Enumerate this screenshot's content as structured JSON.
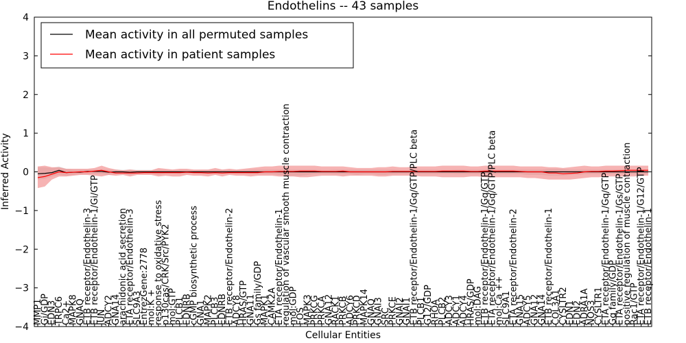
{
  "chart_data": {
    "type": "line",
    "title": "Endothelins -- 43 samples",
    "xlabel": "Cellular Entities",
    "ylabel": "Inferred Activity",
    "ylim": [
      -4,
      4
    ],
    "yticks": [
      "−4",
      "−3",
      "−2",
      "−1",
      "0",
      "1",
      "2",
      "3",
      "4"
    ],
    "grid": false,
    "legend_position": "top-left",
    "categories": [
      "MMP1",
      "Gi/GDP",
      "EDN3",
      "TRPC6",
      "Ca2+",
      "MAPK8",
      "GNAQ",
      "ETB receptor/Endothelin-3",
      "ETB receptor/Endothelin-1/Gi/GTP",
      "JUN",
      "ADCY2",
      "GNA14",
      "arachidonic acid secretion",
      "ETA receptor/Endothelin-3",
      "SLC9A3",
      "EntrezGene:2778",
      "mol:K +",
      "response to oxidative stress",
      "p130cas/CRK/Src/PYK2",
      "mol:GTP",
      "PLCB1",
      "EDNRB",
      "cGMP biosynthetic process",
      "GNA1",
      "MAPK2",
      "PLCB3",
      "EDNRB",
      "ETB receptor/Endothelin-2",
      "ADCY8",
      "HRAS/GTP",
      "GNA11",
      "Gs family/GDP",
      "MAPK1",
      "CAMK2A",
      "ETA receptor/Endothelin-1",
      "regulation of vascular smooth muscle contraction",
      "mol:GDP",
      "FOS",
      "MAPK3",
      "PRKCG",
      "PRKCA",
      "GNA12",
      "RACK1",
      "PRKCB",
      "ADCY6",
      "PRKCD",
      "MAPK14",
      "GNAQ",
      "GNAI3",
      "SRC",
      "PRKCE",
      "GNAI2",
      "GNAI1",
      "ETB receptor/Endothelin-1/Gq/GTP/PLC beta",
      "PLCB1",
      "G12/GDP",
      "RHOA",
      "PLCB2",
      "ADCY3",
      "ADCY1",
      "ADCY4",
      "HRAS/GDP",
      "mol:DAG",
      "ETB receptor/Endothelin-1/Gq/GTP",
      "ETA receptor/Endothelin-1/Gq/GTP/PLC beta",
      "mol:Ca ++",
      "SLC9A1",
      "ETA receptor/Endothelin-2",
      "GNA15",
      "ADCY5",
      "GNA12",
      "GNA14",
      "ETB receptor/Endothelin-1",
      "COL3A1",
      "CYSLTR2",
      "EDN1",
      "EDN2",
      "ADRA1A",
      "NOS3",
      "CYSLTR1",
      "ETA receptor/Endothelin-1/Gq/GTP",
      "Gq family/GDP",
      "ETA receptor/Endothelin-1/Gs/GTP",
      "positive regulation of muscle contraction",
      "Rac1/GTP",
      "ETA receptor/Endothelin-1/G12/GTP",
      "ETB receptor/Endothelin-1"
    ],
    "series": [
      {
        "name": "Mean activity in all permuted samples",
        "color": "#000000",
        "band_color": "#d9d9d9",
        "values": [
          -0.05,
          -0.04,
          -0.02,
          0.04,
          -0.02,
          -0.01,
          -0.01,
          0.01,
          0.01,
          0.01,
          -0.01,
          0.0,
          0.0,
          -0.01,
          0.0,
          0.0,
          0.0,
          0.0,
          0.0,
          0.0,
          0.0,
          0.0,
          0.0,
          0.0,
          0.0,
          0.0,
          0.0,
          0.0,
          0.0,
          0.0,
          0.0,
          0.0,
          0.0,
          0.0,
          0.0,
          0.0,
          0.0,
          0.0,
          0.0,
          0.0,
          0.0,
          0.0,
          0.0,
          0.0,
          0.0,
          0.0,
          0.0,
          0.0,
          0.0,
          0.0,
          0.0,
          0.0,
          0.0,
          0.0,
          0.0,
          0.0,
          0.0,
          0.0,
          0.0,
          0.0,
          0.0,
          0.0,
          0.0,
          0.0,
          0.0,
          0.0,
          0.0,
          0.0,
          0.0,
          0.0,
          0.0,
          0.0,
          0.0,
          0.0,
          0.0,
          0.0,
          0.0,
          0.0,
          0.0,
          0.0,
          0.0,
          0.0,
          0.0,
          0.0,
          0.0,
          0.0,
          0.0
        ],
        "lower": [
          -0.2,
          -0.18,
          -0.12,
          -0.08,
          -0.1,
          -0.08,
          -0.06,
          -0.06,
          -0.06,
          -0.06,
          -0.08,
          -0.06,
          -0.05,
          -0.08,
          -0.05,
          -0.05,
          -0.05,
          -0.08,
          -0.05,
          -0.05,
          -0.06,
          -0.05,
          -0.04,
          -0.05,
          -0.05,
          -0.05,
          -0.05,
          -0.05,
          -0.05,
          -0.05,
          -0.06,
          -0.06,
          -0.06,
          -0.06,
          -0.08,
          -0.1,
          -0.1,
          -0.1,
          -0.08,
          -0.06,
          -0.05,
          -0.05,
          -0.06,
          -0.06,
          -0.06,
          -0.08,
          -0.06,
          -0.06,
          -0.08,
          -0.08,
          -0.06,
          -0.05,
          -0.05,
          -0.05,
          -0.06,
          -0.06,
          -0.06,
          -0.05,
          -0.05,
          -0.06,
          -0.06,
          -0.06,
          -0.06,
          -0.06,
          -0.06,
          -0.06,
          -0.06,
          -0.06,
          -0.06,
          -0.08,
          -0.08,
          -0.08,
          -0.1,
          -0.1,
          -0.1,
          -0.08,
          -0.08,
          -0.06,
          -0.06,
          -0.06,
          -0.06,
          -0.06,
          -0.06,
          -0.06,
          -0.06,
          -0.06,
          -0.06
        ],
        "upper": [
          0.12,
          0.12,
          0.1,
          0.14,
          0.08,
          0.06,
          0.06,
          0.06,
          0.06,
          0.06,
          0.06,
          0.06,
          0.05,
          0.06,
          0.05,
          0.05,
          0.05,
          0.06,
          0.05,
          0.05,
          0.05,
          0.05,
          0.04,
          0.05,
          0.05,
          0.05,
          0.05,
          0.05,
          0.05,
          0.05,
          0.06,
          0.06,
          0.06,
          0.06,
          0.06,
          0.06,
          0.06,
          0.06,
          0.06,
          0.06,
          0.05,
          0.05,
          0.06,
          0.06,
          0.06,
          0.06,
          0.06,
          0.06,
          0.06,
          0.06,
          0.06,
          0.05,
          0.05,
          0.05,
          0.06,
          0.06,
          0.06,
          0.05,
          0.05,
          0.06,
          0.06,
          0.06,
          0.06,
          0.06,
          0.06,
          0.06,
          0.06,
          0.06,
          0.06,
          0.06,
          0.06,
          0.06,
          0.08,
          0.08,
          0.08,
          0.06,
          0.06,
          0.06,
          0.06,
          0.06,
          0.06,
          0.06,
          0.06,
          0.06,
          0.06,
          0.06,
          0.06
        ]
      },
      {
        "name": "Mean activity in patient samples",
        "color": "#ff0000",
        "band_color": "#f08080",
        "values": [
          -0.15,
          -0.12,
          -0.06,
          0.0,
          -0.02,
          -0.01,
          0.0,
          0.0,
          0.02,
          0.04,
          0.0,
          -0.03,
          -0.03,
          -0.03,
          -0.03,
          -0.02,
          -0.02,
          -0.02,
          -0.02,
          -0.02,
          -0.02,
          -0.01,
          -0.02,
          -0.02,
          -0.03,
          -0.02,
          -0.03,
          -0.02,
          -0.02,
          -0.02,
          -0.02,
          -0.02,
          0.0,
          0.0,
          0.01,
          0.01,
          0.01,
          0.02,
          0.02,
          0.02,
          0.01,
          0.01,
          0.01,
          0.02,
          0.0,
          0.0,
          0.0,
          0.0,
          0.0,
          0.0,
          0.01,
          0.01,
          0.01,
          0.01,
          0.01,
          0.01,
          0.01,
          0.02,
          0.02,
          0.02,
          0.02,
          0.01,
          0.01,
          0.02,
          0.02,
          0.02,
          0.02,
          0.02,
          0.01,
          0.0,
          0.0,
          0.0,
          -0.03,
          -0.03,
          -0.05,
          -0.04,
          -0.03,
          0.0,
          0.01,
          0.01,
          0.02,
          0.02,
          0.03,
          0.04,
          0.04,
          0.04,
          0.04
        ],
        "lower": [
          -0.42,
          -0.38,
          -0.2,
          -0.12,
          -0.12,
          -0.1,
          -0.08,
          -0.08,
          -0.1,
          -0.12,
          -0.08,
          -0.1,
          -0.08,
          -0.12,
          -0.08,
          -0.08,
          -0.08,
          -0.12,
          -0.1,
          -0.12,
          -0.12,
          -0.08,
          -0.1,
          -0.1,
          -0.12,
          -0.08,
          -0.12,
          -0.08,
          -0.1,
          -0.1,
          -0.12,
          -0.1,
          -0.1,
          -0.1,
          -0.12,
          -0.12,
          -0.12,
          -0.14,
          -0.14,
          -0.12,
          -0.1,
          -0.1,
          -0.1,
          -0.12,
          -0.1,
          -0.1,
          -0.1,
          -0.1,
          -0.12,
          -0.12,
          -0.1,
          -0.1,
          -0.1,
          -0.1,
          -0.12,
          -0.12,
          -0.12,
          -0.14,
          -0.14,
          -0.14,
          -0.14,
          -0.12,
          -0.12,
          -0.14,
          -0.14,
          -0.14,
          -0.14,
          -0.14,
          -0.14,
          -0.16,
          -0.16,
          -0.18,
          -0.2,
          -0.2,
          -0.2,
          -0.2,
          -0.18,
          -0.16,
          -0.14,
          -0.14,
          -0.12,
          -0.12,
          -0.12,
          -0.12,
          -0.12,
          -0.1,
          -0.1
        ],
        "upper": [
          0.14,
          0.16,
          0.12,
          0.12,
          0.08,
          0.08,
          0.08,
          0.08,
          0.1,
          0.16,
          0.1,
          0.06,
          0.04,
          0.06,
          0.04,
          0.04,
          0.04,
          0.1,
          0.08,
          0.06,
          0.08,
          0.08,
          0.06,
          0.06,
          0.06,
          0.1,
          0.06,
          0.08,
          0.06,
          0.08,
          0.1,
          0.12,
          0.14,
          0.14,
          0.16,
          0.16,
          0.16,
          0.16,
          0.16,
          0.16,
          0.14,
          0.14,
          0.14,
          0.14,
          0.12,
          0.1,
          0.1,
          0.1,
          0.12,
          0.12,
          0.14,
          0.12,
          0.12,
          0.14,
          0.14,
          0.14,
          0.14,
          0.16,
          0.16,
          0.16,
          0.16,
          0.14,
          0.14,
          0.16,
          0.16,
          0.16,
          0.16,
          0.16,
          0.14,
          0.14,
          0.14,
          0.14,
          0.12,
          0.12,
          0.1,
          0.12,
          0.14,
          0.16,
          0.14,
          0.14,
          0.16,
          0.16,
          0.16,
          0.16,
          0.16,
          0.16,
          0.16
        ]
      }
    ]
  }
}
